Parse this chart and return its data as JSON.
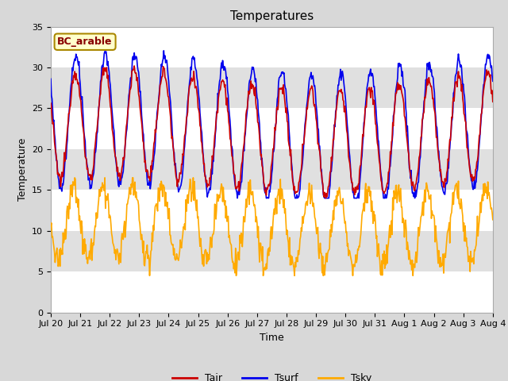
{
  "title": "Temperatures",
  "xlabel": "Time",
  "ylabel": "Temperature",
  "ylim": [
    0,
    35
  ],
  "yticks": [
    0,
    5,
    10,
    15,
    20,
    25,
    30,
    35
  ],
  "xtick_labels": [
    "Jul 20",
    "Jul 21",
    "Jul 22",
    "Jul 23",
    "Jul 24",
    "Jul 25",
    "Jul 26",
    "Jul 27",
    "Jul 28",
    "Jul 29",
    "Jul 30",
    "Jul 31",
    "Aug 1",
    "Aug 2",
    "Aug 3",
    "Aug 4"
  ],
  "color_tair": "#cc0000",
  "color_tsurf": "#0000ee",
  "color_tsky": "#ffaa00",
  "legend_box_label": "BC_arable",
  "legend_box_bg": "#ffffcc",
  "legend_box_border": "#aa8800",
  "legend_box_text_color": "#880000",
  "fig_bg_color": "#d8d8d8",
  "plot_bg_color": "#ffffff",
  "band_color": "#e0e0e0",
  "linewidth": 1.2,
  "title_fontsize": 11,
  "axis_label_fontsize": 9,
  "tick_fontsize": 8,
  "n_days": 15,
  "dt_hours": 0.5
}
